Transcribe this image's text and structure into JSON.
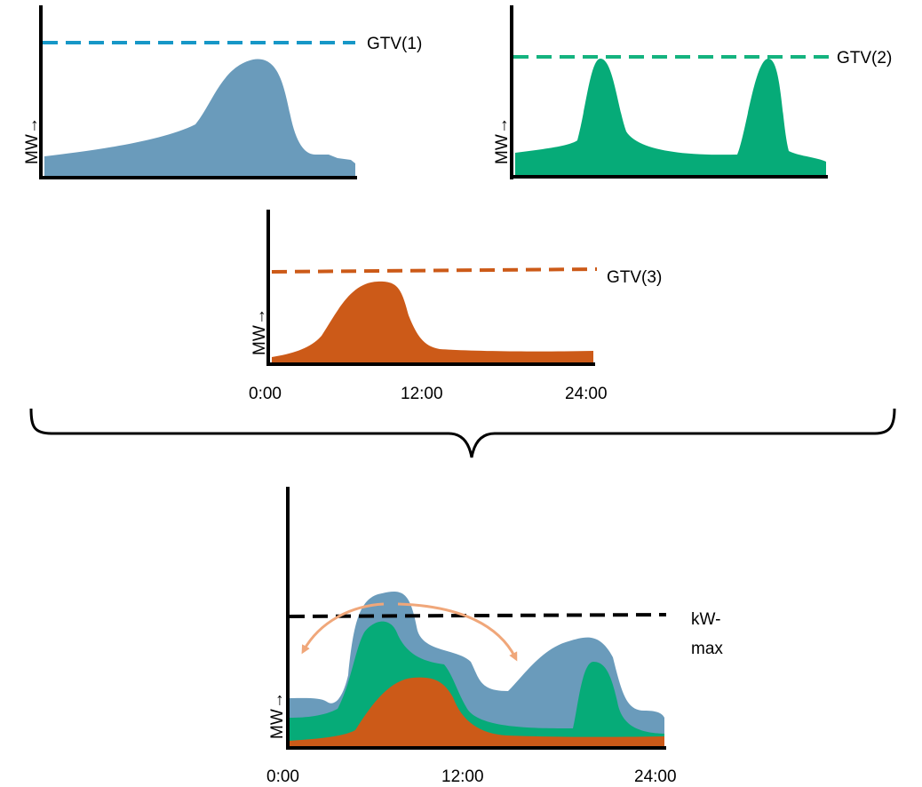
{
  "diagram": {
    "colors": {
      "blue": "#6a9bbb",
      "green": "#06ab78",
      "orange": "#cc5a18",
      "gtv1_line": "#1697c7",
      "gtv2_line": "#14b37f",
      "gtv3_line": "#cc5a18",
      "kwmax_line": "#000000",
      "arrow": "#f0a77a",
      "axis": "#000000"
    },
    "panel_gtv1": {
      "y_axis_label": "MW",
      "arrow_glyph": "→",
      "threshold_label": "GTV(1)"
    },
    "panel_gtv2": {
      "y_axis_label": "MW",
      "arrow_glyph": "→",
      "threshold_label": "GTV(2)"
    },
    "panel_gtv3": {
      "y_axis_label": "MW",
      "arrow_glyph": "→",
      "threshold_label": "GTV(3)",
      "x_ticks": [
        "0:00",
        "12:00",
        "24:00"
      ]
    },
    "panel_combined": {
      "y_axis_label": "MW",
      "arrow_glyph": "→",
      "threshold_label_line1": "kW-",
      "threshold_label_line2": "max",
      "x_ticks": [
        "0:00",
        "12:00",
        "24:00"
      ]
    }
  }
}
